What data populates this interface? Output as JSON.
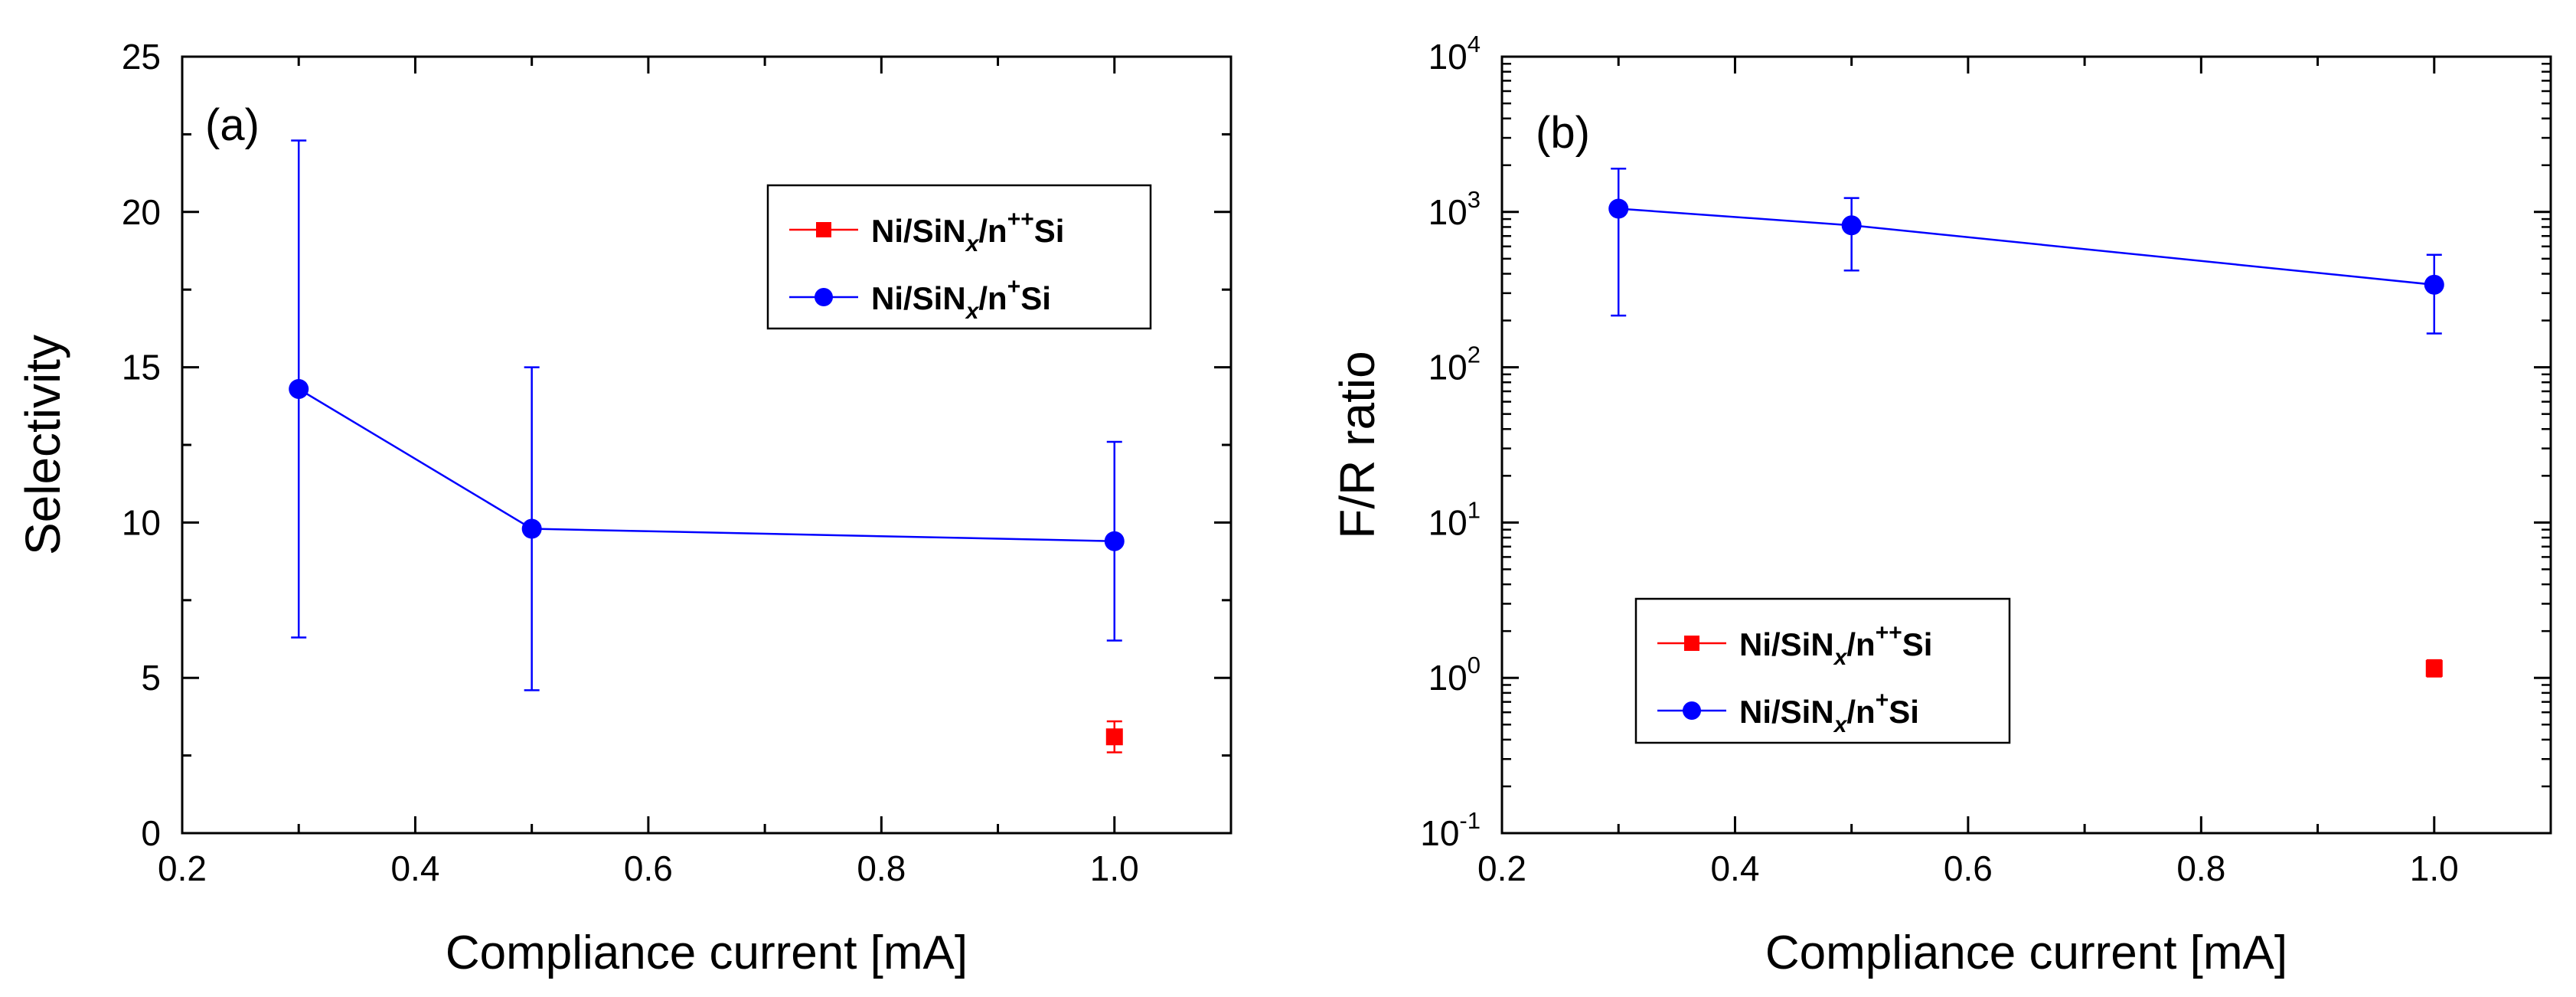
{
  "chart_data": [
    {
      "id": "a",
      "type": "line",
      "panel_label": "(a)",
      "xlabel": "Compliance current [mA]",
      "ylabel": "Selectivity",
      "xscale": "linear",
      "yscale": "linear",
      "xlim": [
        0.2,
        1.1
      ],
      "ylim": [
        0,
        25
      ],
      "x_ticks": [
        0.2,
        0.4,
        0.6,
        0.8,
        1.0
      ],
      "x_tick_labels": [
        "0.2",
        "0.4",
        "0.6",
        "0.8",
        "1.0"
      ],
      "y_ticks": [
        0,
        5,
        10,
        15,
        20,
        25
      ],
      "y_tick_labels": [
        "0",
        "5",
        "10",
        "15",
        "20",
        "25"
      ],
      "legend_position": "upper-right",
      "series": [
        {
          "name": "Ni/SiNx/n++Si",
          "legend": {
            "base": "Ni/SiN",
            "sub": "x",
            "mid": "/n",
            "sup": "++",
            "tail": "Si"
          },
          "color": "#ff0000",
          "marker": "square",
          "x": [
            1.0
          ],
          "y": [
            3.1
          ],
          "err_low": [
            2.6
          ],
          "err_high": [
            3.6
          ]
        },
        {
          "name": "Ni/SiNx/n+Si",
          "legend": {
            "base": "Ni/SiN",
            "sub": "x",
            "mid": "/n",
            "sup": "+",
            "tail": "Si"
          },
          "color": "#0000ff",
          "marker": "circle",
          "x": [
            0.3,
            0.5,
            1.0
          ],
          "y": [
            14.3,
            9.8,
            9.4
          ],
          "err_low": [
            6.3,
            4.6,
            6.2
          ],
          "err_high": [
            22.3,
            15.0,
            12.6
          ]
        }
      ]
    },
    {
      "id": "b",
      "type": "line",
      "panel_label": "(b)",
      "xlabel": "Compliance current [mA]",
      "ylabel": "F/R ratio",
      "xscale": "linear",
      "yscale": "log",
      "xlim": [
        0.2,
        1.1
      ],
      "ylim": [
        0.1,
        10000
      ],
      "x_ticks": [
        0.2,
        0.4,
        0.6,
        0.8,
        1.0
      ],
      "x_tick_labels": [
        "0.2",
        "0.4",
        "0.6",
        "0.8",
        "1.0"
      ],
      "y_ticks": [
        0.1,
        1,
        10,
        100,
        1000,
        10000
      ],
      "y_tick_labels": [
        {
          "base": "10",
          "exp": "-1"
        },
        {
          "base": "10",
          "exp": "0"
        },
        {
          "base": "10",
          "exp": "1"
        },
        {
          "base": "10",
          "exp": "2"
        },
        {
          "base": "10",
          "exp": "3"
        },
        {
          "base": "10",
          "exp": "4"
        }
      ],
      "legend_position": "lower-left",
      "series": [
        {
          "name": "Ni/SiNx/n++Si",
          "legend": {
            "base": "Ni/SiN",
            "sub": "x",
            "mid": "/n",
            "sup": "++",
            "tail": "Si"
          },
          "color": "#ff0000",
          "marker": "square",
          "x": [
            1.0
          ],
          "y": [
            1.15
          ],
          "err_low": [
            1.02
          ],
          "err_high": [
            1.3
          ]
        },
        {
          "name": "Ni/SiNx/n+Si",
          "legend": {
            "base": "Ni/SiN",
            "sub": "x",
            "mid": "/n",
            "sup": "+",
            "tail": "Si"
          },
          "color": "#0000ff",
          "marker": "circle",
          "x": [
            0.3,
            0.5,
            1.0
          ],
          "y": [
            1050,
            820,
            340
          ],
          "err_low": [
            215,
            420,
            165
          ],
          "err_high": [
            1900,
            1230,
            530
          ]
        }
      ]
    }
  ]
}
